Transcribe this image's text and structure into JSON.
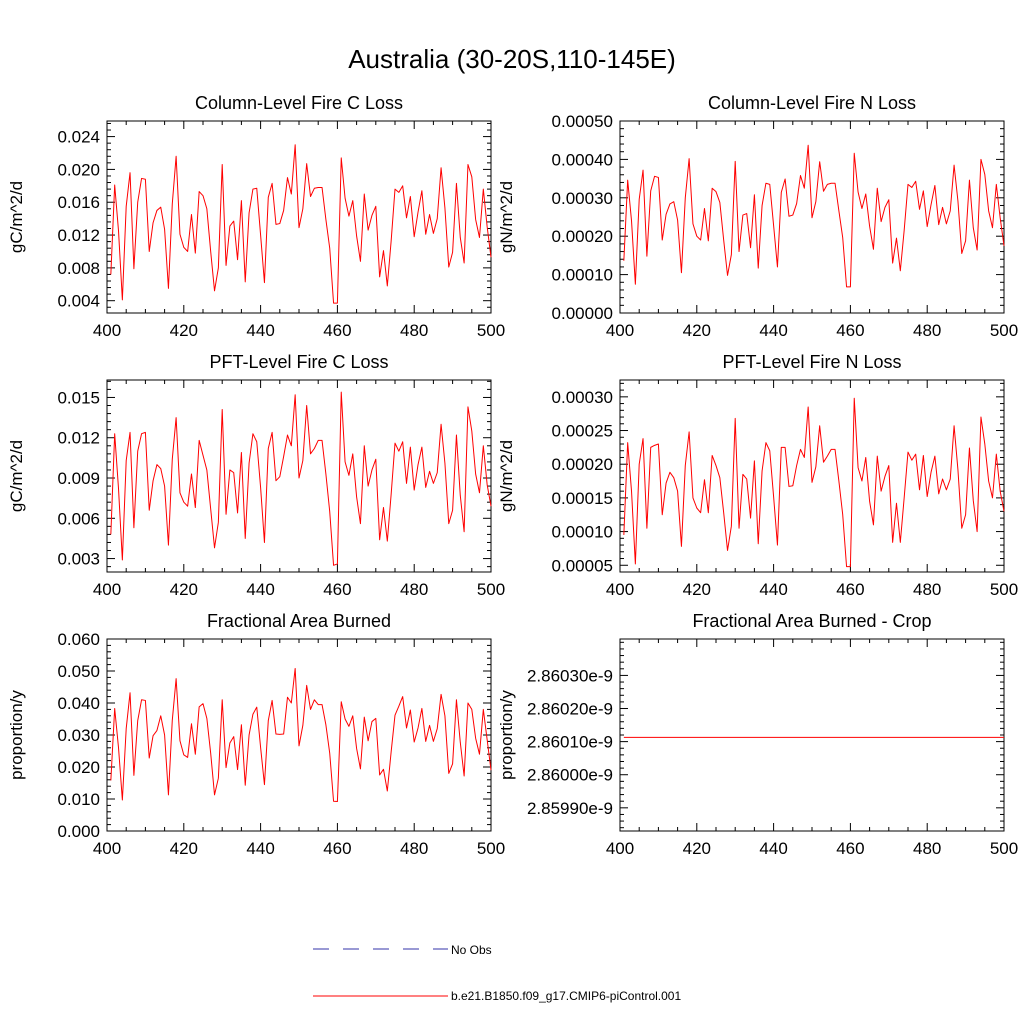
{
  "title": "Australia (30-20S,110-145E)",
  "colors": {
    "model": "#ff0000",
    "obs": "#3333aa",
    "axis": "#000000"
  },
  "legend": [
    {
      "label": "No Obs",
      "style": "dashed",
      "color": "#3333aa"
    },
    {
      "label": "b.e21.B1850.f09_g17.CMIP6-piControl.001",
      "style": "solid",
      "color": "#ff0000"
    }
  ],
  "chart_data": [
    {
      "type": "line",
      "title": "Column-Level Fire C Loss",
      "ylabel": "gC/m^2/d",
      "xlim": [
        400,
        500
      ],
      "ylim": [
        0.0025,
        0.0259
      ],
      "xticks": [
        "400",
        "420",
        "440",
        "460",
        "480",
        "500"
      ],
      "yticks": [
        {
          "v": 0.004,
          "label": "0.004"
        },
        {
          "v": 0.008,
          "label": "0.008"
        },
        {
          "v": 0.012,
          "label": "0.012"
        },
        {
          "v": 0.016,
          "label": "0.016"
        },
        {
          "v": 0.02,
          "label": "0.020"
        },
        {
          "v": 0.024,
          "label": "0.024"
        }
      ],
      "x0": 401,
      "values": [
        0.0072,
        0.0181,
        0.0125,
        0.0041,
        0.0155,
        0.0196,
        0.0079,
        0.016,
        0.0189,
        0.0188,
        0.01,
        0.0135,
        0.015,
        0.0154,
        0.0127,
        0.0055,
        0.0158,
        0.0216,
        0.0121,
        0.0105,
        0.01,
        0.0145,
        0.0098,
        0.0173,
        0.0168,
        0.0152,
        0.01,
        0.0052,
        0.008,
        0.0206,
        0.0083,
        0.0131,
        0.0137,
        0.009,
        0.0162,
        0.0063,
        0.0147,
        0.0176,
        0.0177,
        0.012,
        0.0062,
        0.0166,
        0.0183,
        0.0133,
        0.0134,
        0.015,
        0.019,
        0.017,
        0.023,
        0.0129,
        0.0152,
        0.0207,
        0.0167,
        0.0177,
        0.0178,
        0.0178,
        0.0139,
        0.0104,
        0.0037,
        0.0037,
        0.0214,
        0.0165,
        0.0143,
        0.0162,
        0.0119,
        0.0088,
        0.017,
        0.0126,
        0.0144,
        0.0155,
        0.0069,
        0.0101,
        0.0058,
        0.0113,
        0.0176,
        0.0172,
        0.018,
        0.0141,
        0.0167,
        0.0118,
        0.0148,
        0.0174,
        0.0121,
        0.0145,
        0.0122,
        0.014,
        0.0202,
        0.0153,
        0.0081,
        0.0099,
        0.0183,
        0.0117,
        0.0086,
        0.0206,
        0.0191,
        0.0139,
        0.0117,
        0.0176,
        0.013,
        0.0093
      ]
    },
    {
      "type": "line",
      "title": "Column-Level Fire N Loss",
      "ylabel": "gN/m^2/d",
      "xlim": [
        400,
        500
      ],
      "ylim": [
        0.0,
        0.0005
      ],
      "xticks": [
        "400",
        "420",
        "440",
        "460",
        "480",
        "500"
      ],
      "yticks": [
        {
          "v": 0.0,
          "label": "0.00000"
        },
        {
          "v": 0.0001,
          "label": "0.00010"
        },
        {
          "v": 0.0002,
          "label": "0.00020"
        },
        {
          "v": 0.0003,
          "label": "0.00030"
        },
        {
          "v": 0.0004,
          "label": "0.00040"
        },
        {
          "v": 0.0005,
          "label": "0.00050"
        }
      ],
      "x0": 401,
      "values": [
        0.000136,
        0.000346,
        0.00024,
        7.5e-05,
        0.000296,
        0.000372,
        0.000148,
        0.000318,
        0.000356,
        0.000353,
        0.00019,
        0.000257,
        0.000284,
        0.00029,
        0.000242,
        0.000105,
        0.0003,
        0.000402,
        0.000232,
        0.0002,
        0.00019,
        0.000272,
        0.000188,
        0.000325,
        0.000316,
        0.000288,
        0.00019,
        9.8e-05,
        0.000152,
        0.000395,
        0.00016,
        0.000255,
        0.000259,
        0.00017,
        0.000308,
        0.000117,
        0.00028,
        0.000338,
        0.000335,
        0.000228,
        0.00012,
        0.000314,
        0.000349,
        0.000252,
        0.000255,
        0.000285,
        0.000358,
        0.000325,
        0.000437,
        0.000248,
        0.00029,
        0.000394,
        0.000317,
        0.000335,
        0.000338,
        0.000338,
        0.000266,
        0.000196,
        6.8e-05,
        6.8e-05,
        0.000416,
        0.000315,
        0.000272,
        0.00031,
        0.000226,
        0.000166,
        0.000325,
        0.000238,
        0.000275,
        0.000295,
        0.00013,
        0.000195,
        0.00011,
        0.000215,
        0.000335,
        0.000327,
        0.000343,
        0.00027,
        0.000318,
        0.000225,
        0.000282,
        0.000332,
        0.00023,
        0.000275,
        0.000232,
        0.000266,
        0.000385,
        0.000292,
        0.000155,
        0.000188,
        0.000346,
        0.000222,
        0.000164,
        0.0004,
        0.000361,
        0.000266,
        0.000222,
        0.000335,
        0.000248,
        0.000175
      ]
    },
    {
      "type": "line",
      "title": "PFT-Level Fire C Loss",
      "ylabel": "gC/m^2/d",
      "xlim": [
        400,
        500
      ],
      "ylim": [
        0.002,
        0.0163
      ],
      "xticks": [
        "400",
        "420",
        "440",
        "460",
        "480",
        "500"
      ],
      "yticks": [
        {
          "v": 0.003,
          "label": "0.003"
        },
        {
          "v": 0.006,
          "label": "0.006"
        },
        {
          "v": 0.009,
          "label": "0.009"
        },
        {
          "v": 0.012,
          "label": "0.012"
        },
        {
          "v": 0.015,
          "label": "0.015"
        }
      ],
      "x0": 401,
      "values": [
        0.0048,
        0.0123,
        0.0082,
        0.0029,
        0.0103,
        0.0124,
        0.0053,
        0.011,
        0.0123,
        0.0124,
        0.0066,
        0.0088,
        0.01,
        0.0097,
        0.0084,
        0.004,
        0.0104,
        0.0135,
        0.0079,
        0.0072,
        0.0069,
        0.0093,
        0.0068,
        0.0118,
        0.0107,
        0.0096,
        0.0067,
        0.0038,
        0.0057,
        0.0141,
        0.0063,
        0.0096,
        0.0094,
        0.0064,
        0.0109,
        0.0045,
        0.0101,
        0.0123,
        0.0117,
        0.0083,
        0.0042,
        0.0112,
        0.0124,
        0.0088,
        0.0091,
        0.0106,
        0.0122,
        0.0114,
        0.0152,
        0.009,
        0.0103,
        0.0144,
        0.0108,
        0.0112,
        0.0118,
        0.0118,
        0.0093,
        0.0065,
        0.0025,
        0.0026,
        0.0154,
        0.0102,
        0.0092,
        0.0108,
        0.0076,
        0.0056,
        0.0114,
        0.0084,
        0.0096,
        0.0104,
        0.0044,
        0.0068,
        0.0043,
        0.0078,
        0.0116,
        0.011,
        0.0117,
        0.0086,
        0.0113,
        0.0081,
        0.01,
        0.0113,
        0.0083,
        0.0095,
        0.0086,
        0.0094,
        0.013,
        0.0101,
        0.0056,
        0.0066,
        0.0122,
        0.0077,
        0.005,
        0.0143,
        0.0125,
        0.0093,
        0.0079,
        0.0114,
        0.0085,
        0.0069
      ]
    },
    {
      "type": "line",
      "title": "PFT-Level Fire N Loss",
      "ylabel": "gN/m^2/d",
      "xlim": [
        400,
        500
      ],
      "ylim": [
        4e-05,
        0.000325
      ],
      "xticks": [
        "400",
        "420",
        "440",
        "460",
        "480",
        "500"
      ],
      "yticks": [
        {
          "v": 5e-05,
          "label": "0.00005"
        },
        {
          "v": 0.0001,
          "label": "0.00010"
        },
        {
          "v": 0.00015,
          "label": "0.00015"
        },
        {
          "v": 0.0002,
          "label": "0.00020"
        },
        {
          "v": 0.00025,
          "label": "0.00025"
        },
        {
          "v": 0.0003,
          "label": "0.00030"
        }
      ],
      "x0": 401,
      "values": [
        9.5e-05,
        0.000232,
        0.00016,
        5.2e-05,
        0.0002,
        0.000238,
        0.000105,
        0.000225,
        0.000228,
        0.00023,
        0.000125,
        0.000172,
        0.000188,
        0.00018,
        0.00016,
        7.8e-05,
        0.000198,
        0.000248,
        0.00015,
        0.000135,
        0.000128,
        0.000177,
        0.000128,
        0.000213,
        0.000198,
        0.00018,
        0.000128,
        7.2e-05,
        0.000108,
        0.000268,
        0.000105,
        0.000185,
        0.000178,
        0.00012,
        0.000205,
        8.2e-05,
        0.00019,
        0.000232,
        0.00022,
        0.000152,
        8e-05,
        0.000225,
        0.000225,
        0.000167,
        0.000168,
        0.000198,
        0.000222,
        0.00021,
        0.000285,
        0.000173,
        0.000196,
        0.000257,
        0.000203,
        0.000212,
        0.000222,
        0.000222,
        0.000175,
        0.000125,
        4.8e-05,
        4.8e-05,
        0.000298,
        0.000195,
        0.000175,
        0.00021,
        0.000145,
        0.00011,
        0.000212,
        0.00016,
        0.000182,
        0.000198,
        8.4e-05,
        0.000142,
        8.4e-05,
        0.00015,
        0.000218,
        0.000206,
        0.000215,
        0.000162,
        0.000213,
        0.000152,
        0.000188,
        0.000212,
        0.000156,
        0.000178,
        0.000162,
        0.000178,
        0.000257,
        0.000192,
        0.000105,
        0.000125,
        0.000224,
        0.000146,
        0.0001,
        0.00027,
        0.00023,
        0.000175,
        0.00015,
        0.000215,
        0.00016,
        0.00013
      ]
    },
    {
      "type": "line",
      "title": "Fractional Area Burned",
      "ylabel": "proportion/y",
      "xlim": [
        400,
        500
      ],
      "ylim": [
        0.0,
        0.06
      ],
      "xticks": [
        "400",
        "420",
        "440",
        "460",
        "480",
        "500"
      ],
      "yticks": [
        {
          "v": 0.0,
          "label": "0.000"
        },
        {
          "v": 0.01,
          "label": "0.010"
        },
        {
          "v": 0.02,
          "label": "0.020"
        },
        {
          "v": 0.03,
          "label": "0.030"
        },
        {
          "v": 0.04,
          "label": "0.040"
        },
        {
          "v": 0.05,
          "label": "0.050"
        },
        {
          "v": 0.06,
          "label": "0.060"
        }
      ],
      "x0": 401,
      "values": [
        0.0158,
        0.0383,
        0.026,
        0.0097,
        0.032,
        0.0432,
        0.0174,
        0.0345,
        0.041,
        0.0408,
        0.0228,
        0.0298,
        0.0314,
        0.036,
        0.03,
        0.0113,
        0.0346,
        0.0476,
        0.0282,
        0.0238,
        0.023,
        0.0335,
        0.024,
        0.0388,
        0.0398,
        0.0352,
        0.0243,
        0.0113,
        0.0165,
        0.041,
        0.0198,
        0.0275,
        0.0295,
        0.0192,
        0.0332,
        0.0143,
        0.03,
        0.0365,
        0.0387,
        0.0261,
        0.0145,
        0.0345,
        0.0408,
        0.0303,
        0.0302,
        0.0303,
        0.0418,
        0.04,
        0.0508,
        0.0266,
        0.033,
        0.0455,
        0.038,
        0.041,
        0.0395,
        0.0395,
        0.0332,
        0.0243,
        0.0093,
        0.0092,
        0.0404,
        0.035,
        0.0327,
        0.036,
        0.0258,
        0.0194,
        0.0356,
        0.0282,
        0.0342,
        0.0352,
        0.0175,
        0.0193,
        0.0125,
        0.0248,
        0.0362,
        0.039,
        0.042,
        0.0322,
        0.0378,
        0.0278,
        0.0322,
        0.0383,
        0.028,
        0.033,
        0.028,
        0.032,
        0.0427,
        0.036,
        0.018,
        0.021,
        0.041,
        0.0277,
        0.0172,
        0.04,
        0.038,
        0.029,
        0.024,
        0.038,
        0.0285,
        0.019
      ]
    },
    {
      "type": "line",
      "title": "Fractional Area Burned - Crop",
      "ylabel": "proportion/y",
      "xlim": [
        400,
        500
      ],
      "ylim": [
        2.85983e-09,
        2.86041e-09
      ],
      "xticks": [
        "400",
        "420",
        "440",
        "460",
        "480",
        "500"
      ],
      "yticks": [
        {
          "v": 2.8599e-09,
          "label": "2.85990e-9"
        },
        {
          "v": 2.86e-09,
          "label": "2.86000e-9"
        },
        {
          "v": 2.8601e-09,
          "label": "2.86010e-9"
        },
        {
          "v": 2.8602e-09,
          "label": "2.86020e-9"
        },
        {
          "v": 2.8603e-09,
          "label": "2.86030e-9"
        }
      ],
      "x0": 401,
      "constant": 2.860113e-09,
      "n": 100
    }
  ]
}
